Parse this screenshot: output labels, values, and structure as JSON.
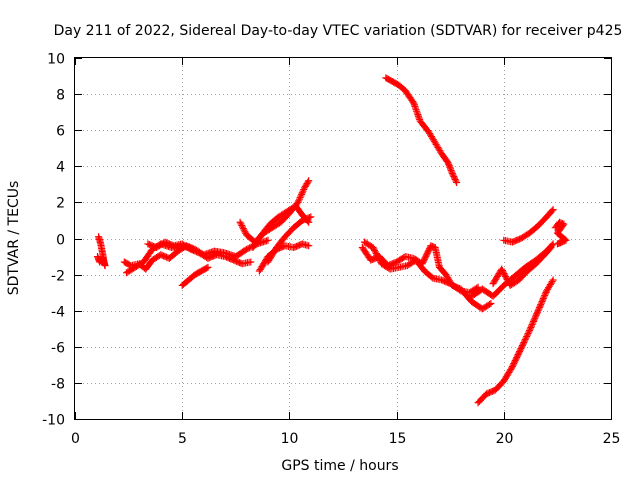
{
  "chart_data": {
    "type": "scatter",
    "title": "Day 211 of 2022, Sidereal Day-to-day VTEC variation (SDTVAR) for receiver p425",
    "xlabel": "GPS time / hours",
    "ylabel": "SDTVAR / TECUs",
    "xlim": [
      0,
      25
    ],
    "ylim": [
      -10,
      10
    ],
    "xticks": [
      "0",
      "5",
      "10",
      "15",
      "20",
      "25"
    ],
    "yticks": [
      "-10",
      "-8",
      "-6",
      "-4",
      "-2",
      "0",
      "2",
      "4",
      "6",
      "8",
      "10"
    ],
    "grid": true,
    "color": "#ff0000",
    "marker": "plus",
    "series": [
      {
        "x": [
          1.1,
          1.2,
          1.3,
          1.35,
          1.4
        ],
        "y": [
          0.1,
          -0.3,
          -0.9,
          -1.3,
          -1.5
        ]
      },
      {
        "x": [
          1.05,
          1.15,
          1.3,
          1.4
        ],
        "y": [
          -1.0,
          -1.3,
          -1.1,
          -1.5
        ]
      },
      {
        "x": [
          2.3,
          2.6,
          3.0,
          3.3,
          3.6,
          4.0,
          4.4,
          4.8,
          5.2,
          5.6,
          6.0,
          6.5,
          7.0,
          7.5,
          8.0,
          8.5,
          9.0
        ],
        "y": [
          -1.3,
          -1.5,
          -1.4,
          -1.7,
          -1.2,
          -0.9,
          -1.1,
          -0.7,
          -0.4,
          -0.6,
          -0.9,
          -0.7,
          -0.8,
          -1.0,
          -0.6,
          -0.3,
          -0.1
        ]
      },
      {
        "x": [
          2.4,
          2.8,
          3.2,
          3.6,
          4.0,
          4.5,
          5.0,
          5.5
        ],
        "y": [
          -1.9,
          -1.6,
          -1.3,
          -0.6,
          -0.3,
          -0.5,
          -0.4,
          -0.6
        ]
      },
      {
        "x": [
          3.4,
          3.8,
          4.2,
          4.6,
          5.0,
          5.4,
          5.8,
          6.2,
          6.6,
          7.0,
          7.4,
          7.8,
          8.2
        ],
        "y": [
          -0.3,
          -0.5,
          -0.2,
          -0.4,
          -0.3,
          -0.6,
          -0.8,
          -1.1,
          -0.9,
          -1.0,
          -1.2,
          -1.4,
          -1.3
        ]
      },
      {
        "x": [
          5.0,
          5.3,
          5.6,
          5.9,
          6.2
        ],
        "y": [
          -2.6,
          -2.3,
          -2.0,
          -1.8,
          -1.6
        ]
      },
      {
        "x": [
          7.7,
          8.0,
          8.4,
          8.8,
          9.2,
          9.6,
          10.0,
          10.4,
          10.7,
          10.9
        ],
        "y": [
          0.9,
          0.2,
          -0.2,
          0.3,
          0.6,
          0.9,
          1.4,
          2.0,
          2.8,
          3.2
        ]
      },
      {
        "x": [
          8.3,
          8.7,
          9.1,
          9.5,
          9.9,
          10.3,
          10.6,
          10.9
        ],
        "y": [
          -0.5,
          0.2,
          0.8,
          1.2,
          1.5,
          1.8,
          1.3,
          0.9
        ]
      },
      {
        "x": [
          8.6,
          9.0,
          9.4,
          9.8,
          10.2,
          10.6,
          10.9
        ],
        "y": [
          -1.8,
          -1.0,
          -0.6,
          -0.4,
          -0.5,
          -0.3,
          -0.4
        ]
      },
      {
        "x": [
          9.0,
          9.4,
          9.8,
          10.2,
          10.6,
          11.0
        ],
        "y": [
          -1.3,
          -0.5,
          0.1,
          0.6,
          1.0,
          1.2
        ]
      },
      {
        "x": [
          13.4,
          13.8,
          14.2,
          14.6,
          15.0,
          15.4,
          15.8,
          16.2,
          16.6,
          16.8,
          17.0,
          17.3,
          17.6,
          18.0,
          18.5,
          19.0,
          19.4
        ],
        "y": [
          -0.5,
          -1.2,
          -1.0,
          -1.5,
          -1.3,
          -1.0,
          -1.1,
          -1.4,
          -0.4,
          -0.5,
          -1.6,
          -2.0,
          -2.6,
          -2.8,
          -3.5,
          -3.9,
          -3.6
        ]
      },
      {
        "x": [
          13.5,
          13.9,
          14.3,
          14.7,
          15.1,
          15.5,
          15.9,
          16.3,
          16.7,
          17.1,
          17.5,
          18.0,
          18.4,
          18.8
        ],
        "y": [
          -0.2,
          -0.5,
          -1.4,
          -1.7,
          -1.6,
          -1.5,
          -1.2,
          -1.8,
          -2.2,
          -2.3,
          -2.5,
          -2.9,
          -3.0,
          -2.7
        ]
      },
      {
        "x": [
          14.5,
          14.8,
          15.1,
          15.4,
          15.8,
          16.1,
          16.5,
          16.8,
          17.1,
          17.4,
          17.6,
          17.8
        ],
        "y": [
          8.9,
          8.7,
          8.5,
          8.2,
          7.5,
          6.5,
          5.9,
          5.3,
          4.7,
          4.2,
          3.6,
          3.1
        ]
      },
      {
        "x": [
          18.8,
          19.2,
          19.6,
          20.0,
          20.4,
          20.8,
          21.2,
          21.6,
          22.0,
          22.3
        ],
        "y": [
          -9.1,
          -8.6,
          -8.4,
          -7.9,
          -7.1,
          -6.1,
          -5.1,
          -4.0,
          -2.9,
          -2.3
        ]
      },
      {
        "x": [
          19.5,
          19.9,
          20.3,
          20.7,
          21.1,
          21.5,
          21.9,
          22.2
        ],
        "y": [
          -2.5,
          -1.7,
          -2.6,
          -2.3,
          -1.8,
          -1.4,
          -0.9,
          -0.5
        ]
      },
      {
        "x": [
          20.0,
          20.4,
          20.8,
          21.2,
          21.6,
          22.0,
          22.3
        ],
        "y": [
          -0.1,
          -0.2,
          0.0,
          0.3,
          0.7,
          1.2,
          1.6
        ]
      },
      {
        "x": [
          18.5,
          19.0,
          19.5,
          20.0,
          20.5,
          21.0,
          21.5,
          22.0,
          22.3
        ],
        "y": [
          -3.2,
          -2.8,
          -3.2,
          -2.6,
          -2.1,
          -1.6,
          -1.2,
          -0.7,
          -0.3
        ]
      },
      {
        "x": [
          22.4,
          22.6,
          22.8,
          22.5,
          22.7,
          22.9,
          22.5,
          22.7
        ],
        "y": [
          0.6,
          0.9,
          0.8,
          0.3,
          0.1,
          -0.1,
          -0.3,
          -0.2
        ]
      }
    ]
  }
}
